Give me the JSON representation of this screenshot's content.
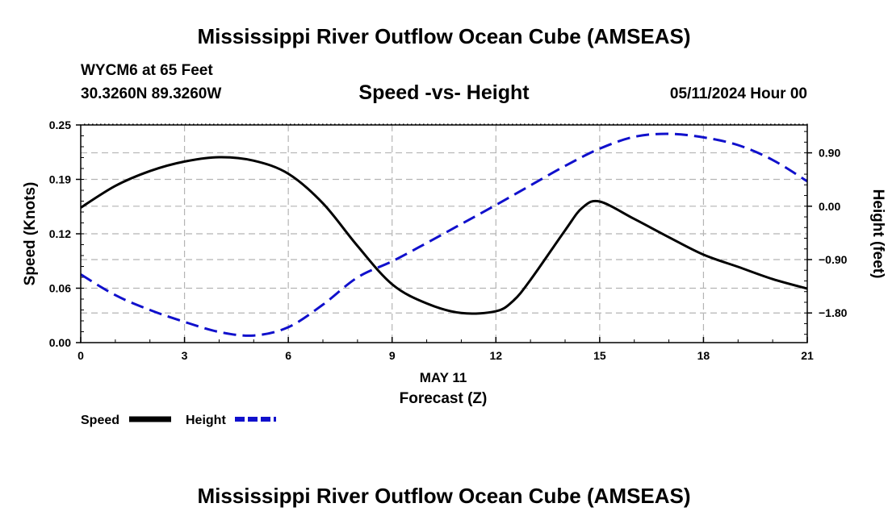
{
  "header": {
    "title": "Mississippi River Outflow Ocean Cube (AMSEAS)",
    "station": "WYCM6 at 65 Feet",
    "coords": "30.3260N  89.3260W",
    "subtitle": "Speed -vs- Height",
    "datehour": "05/11/2024 Hour 00"
  },
  "footer": {
    "title": "Mississippi River Outflow Ocean Cube (AMSEAS)"
  },
  "chart_data": {
    "type": "line",
    "title": "Speed -vs- Height",
    "xlabel": "Forecast (Z)",
    "xlabel_date": "MAY 11",
    "x_ticks": [
      0,
      3,
      6,
      9,
      12,
      15,
      18,
      21
    ],
    "x_tick_labels": [
      "0",
      "3",
      "6",
      "9",
      "12",
      "15",
      "18",
      "21"
    ],
    "xlim": [
      0,
      21
    ],
    "left_axis": {
      "label": "Speed (Knots)",
      "lim": [
        0,
        0.25
      ],
      "ticks": [
        0,
        0.0625,
        0.125,
        0.1875,
        0.25
      ],
      "tick_labels": [
        "0.00",
        "0.06",
        "0.12",
        "0.19",
        "0.25"
      ]
    },
    "right_axis": {
      "label": "Height (feet)",
      "lim": [
        -2.3,
        1.37
      ],
      "ticks": [
        -1.8,
        -0.9,
        0,
        0.9
      ],
      "tick_labels": [
        "−1.80",
        "−0.90",
        "0.00",
        "0.90"
      ]
    },
    "grid": true,
    "series": [
      {
        "name": "Speed",
        "axis": "left",
        "color": "#000000",
        "dash": "solid",
        "x": [
          0,
          1,
          2,
          3,
          4,
          5,
          6,
          7,
          8,
          9,
          10,
          11,
          12,
          12.5,
          13,
          14,
          14.5,
          15,
          16,
          17,
          18,
          19,
          20,
          21
        ],
        "values": [
          0.155,
          0.18,
          0.197,
          0.208,
          0.213,
          0.209,
          0.194,
          0.16,
          0.111,
          0.067,
          0.045,
          0.034,
          0.036,
          0.048,
          0.072,
          0.129,
          0.155,
          0.162,
          0.142,
          0.121,
          0.101,
          0.087,
          0.073,
          0.062
        ]
      },
      {
        "name": "Height",
        "axis": "right",
        "color": "#1010cc",
        "dash": "dashed",
        "x": [
          0,
          1,
          2,
          3,
          4,
          5,
          6,
          7,
          8,
          9,
          10,
          11,
          12,
          13,
          14,
          15,
          16,
          17,
          18,
          19,
          20,
          21
        ],
        "values": [
          -1.15,
          -1.5,
          -1.75,
          -1.95,
          -2.12,
          -2.18,
          -2.04,
          -1.66,
          -1.2,
          -0.93,
          -0.62,
          -0.3,
          0.02,
          0.35,
          0.68,
          0.97,
          1.17,
          1.22,
          1.16,
          1.03,
          0.78,
          0.42
        ]
      }
    ],
    "legend": {
      "position": "bottom-left",
      "entries": [
        "Speed",
        "Height"
      ]
    }
  }
}
